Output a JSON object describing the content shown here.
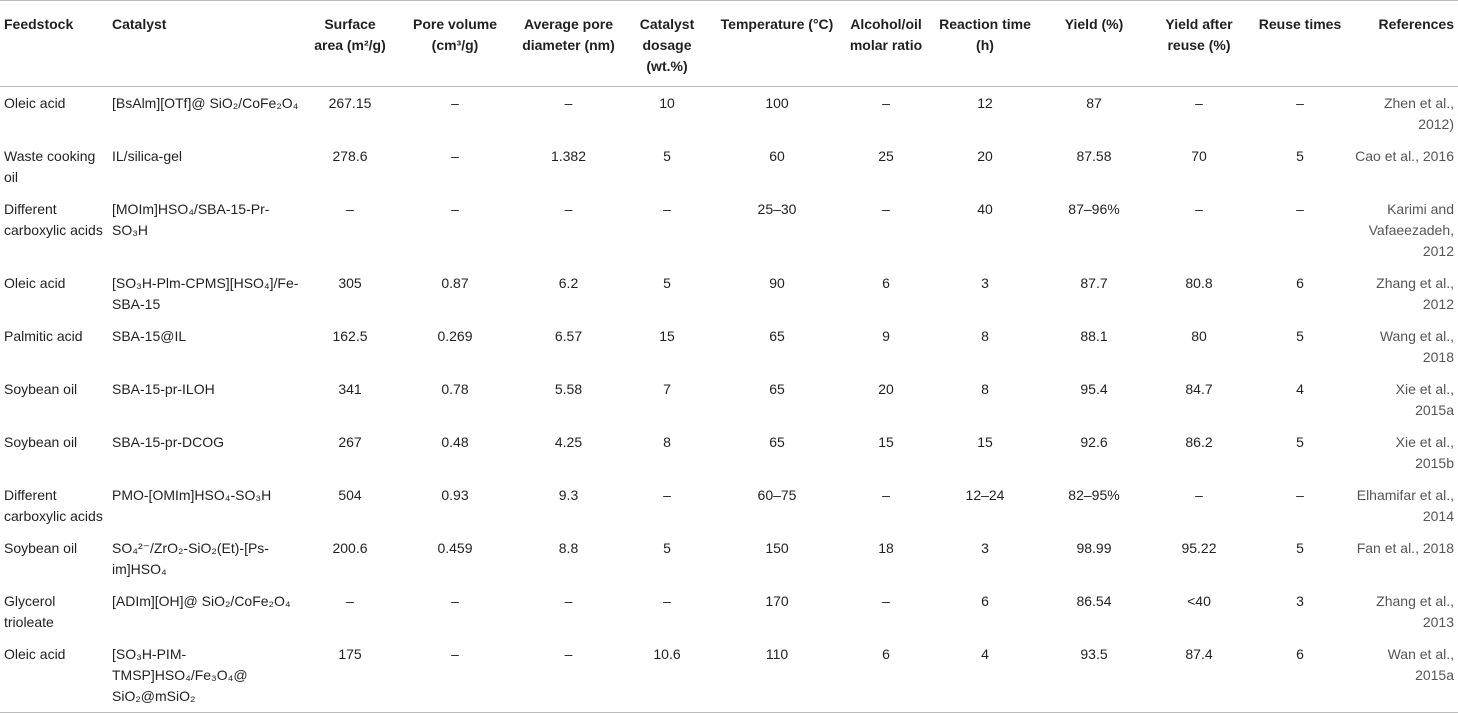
{
  "table": {
    "header": [
      "Feedstock",
      "Catalyst",
      "Surface area (m²/g)",
      "Pore volume (cm³/g)",
      "Average pore diameter (nm)",
      "Catalyst dosage (wt.%)",
      "Temperature (°C)",
      "Alcohol/oil molar ratio",
      "Reaction time (h)",
      "Yield (%)",
      "Yield after reuse (%)",
      "Reuse times",
      "References"
    ],
    "rows": [
      [
        "Oleic acid",
        "[BsAlm][OTf]@ SiO₂/CoFe₂O₄",
        "267.15",
        "–",
        "–",
        "10",
        "100",
        "–",
        "12",
        "87",
        "–",
        "–",
        "Zhen et al., 2012)"
      ],
      [
        "Waste cooking oil",
        "IL/silica-gel",
        "278.6",
        "–",
        "1.382",
        "5",
        "60",
        "25",
        "20",
        "87.58",
        "70",
        "5",
        "Cao et al., 2016"
      ],
      [
        "Different carboxylic acids",
        "[MOIm]HSO₄/SBA-15-Pr-SO₃H",
        "–",
        "–",
        "–",
        "–",
        "25–30",
        "–",
        "40",
        "87–96%",
        "–",
        "–",
        "Karimi and Vafaeezadeh, 2012"
      ],
      [
        "Oleic acid",
        "[SO₃H-Plm-CPMS][HSO₄]/Fe-SBA-15",
        "305",
        "0.87",
        "6.2",
        "5",
        "90",
        "6",
        "3",
        "87.7",
        "80.8",
        "6",
        "Zhang et al., 2012"
      ],
      [
        "Palmitic acid",
        "SBA-15@IL",
        "162.5",
        "0.269",
        "6.57",
        "15",
        "65",
        "9",
        "8",
        "88.1",
        "80",
        "5",
        "Wang et al., 2018"
      ],
      [
        "Soybean oil",
        "SBA-15-pr-ILOH",
        "341",
        "0.78",
        "5.58",
        "7",
        "65",
        "20",
        "8",
        "95.4",
        "84.7",
        "4",
        "Xie et al., 2015a"
      ],
      [
        "Soybean oil",
        "SBA-15-pr-DCOG",
        "267",
        "0.48",
        "4.25",
        "8",
        "65",
        "15",
        "15",
        "92.6",
        "86.2",
        "5",
        "Xie et al., 2015b"
      ],
      [
        "Different carboxylic acids",
        "PMO-[OMIm]HSO₄-SO₃H",
        "504",
        "0.93",
        "9.3",
        "–",
        "60–75",
        "–",
        "12–24",
        "82–95%",
        "–",
        "–",
        "Elhamifar et al., 2014"
      ],
      [
        "Soybean oil",
        "SO₄²⁻/ZrO₂-SiO₂(Et)-[Ps-im]HSO₄",
        "200.6",
        "0.459",
        "8.8",
        "5",
        "150",
        "18",
        "3",
        "98.99",
        "95.22",
        "5",
        "Fan et al., 2018"
      ],
      [
        "Glycerol trioleate",
        "[ADIm][OH]@ SiO₂/CoFe₂O₄",
        "–",
        "–",
        "–",
        "–",
        "170",
        "–",
        "6",
        "86.54",
        "<40",
        "3",
        "Zhang et al., 2013"
      ],
      [
        "Oleic acid",
        "[SO₃H-PIM-TMSP]HSO₄/Fe₃O₄@ SiO₂@mSiO₂",
        "175",
        "–",
        "–",
        "10.6",
        "110",
        "6",
        "4",
        "93.5",
        "87.4",
        "6",
        "Wan et al., 2015a"
      ]
    ]
  }
}
